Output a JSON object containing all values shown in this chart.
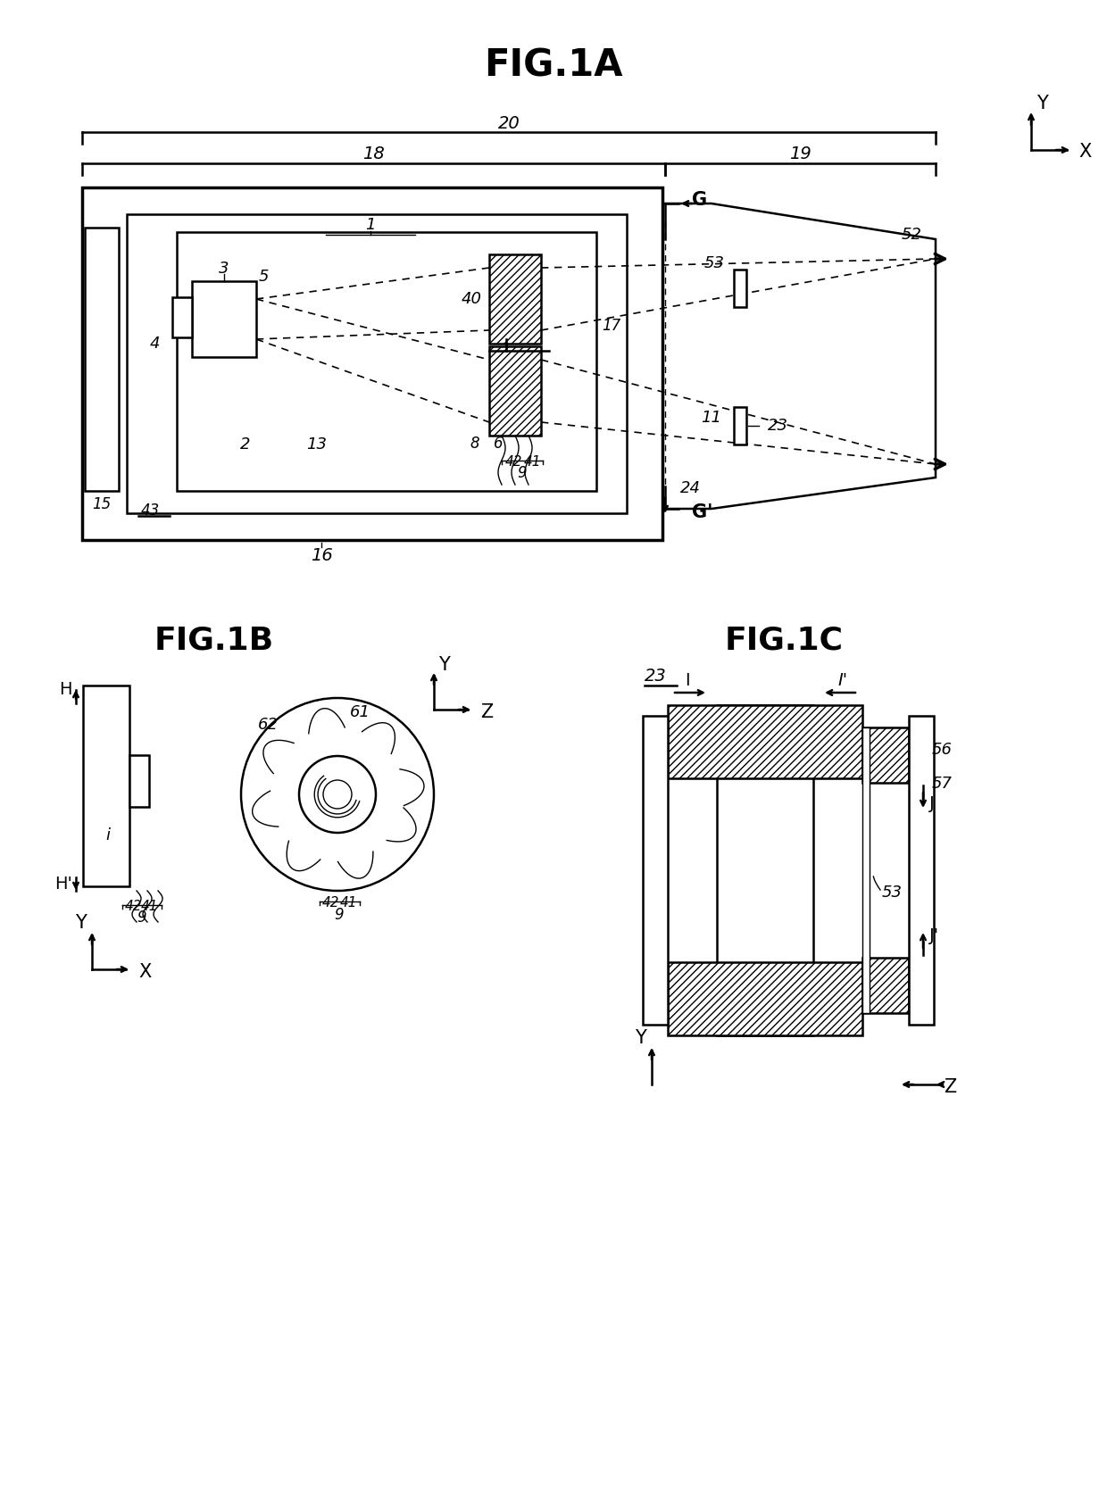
{
  "title_1a": "FIG.1A",
  "title_1b": "FIG.1B",
  "title_1c": "FIG.1C",
  "bg_color": "#ffffff",
  "line_color": "#000000",
  "label_color": "#000000"
}
